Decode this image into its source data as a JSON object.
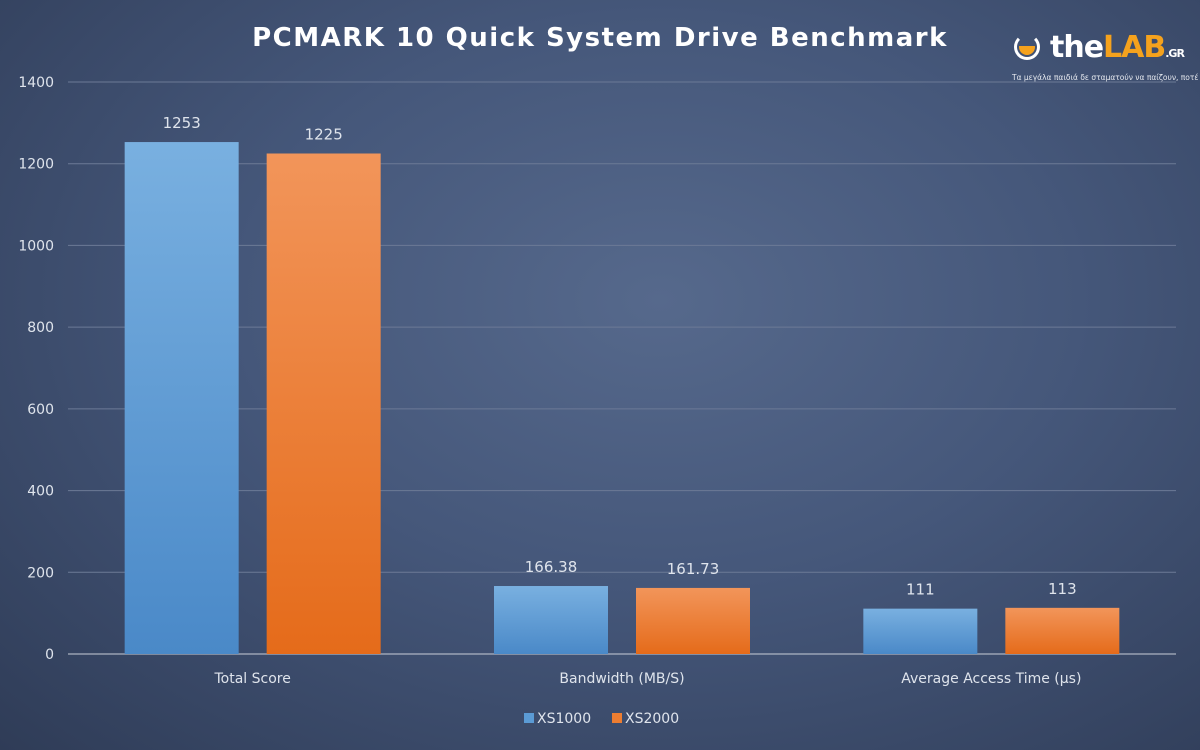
{
  "chart_data": {
    "type": "bar",
    "title": "PCMARK 10 Quick System Drive Benchmark",
    "categories": [
      "Total Score",
      "Bandwidth (MB/S)",
      "Average Access Time (µs)"
    ],
    "series": [
      {
        "name": "XS1000",
        "values": [
          1253,
          166.38,
          111
        ],
        "labels": [
          "1253",
          "166.38",
          "111"
        ],
        "color": "#5b9bd5"
      },
      {
        "name": "XS2000",
        "values": [
          1225,
          161.73,
          113
        ],
        "labels": [
          "1225",
          "161.73",
          "113"
        ],
        "color": "#ed7d31"
      }
    ],
    "ylim": [
      0,
      1400
    ],
    "yticks": [
      0,
      200,
      400,
      600,
      800,
      1000,
      1200,
      1400
    ],
    "grid": true,
    "legend": "bottom",
    "xlabel": "",
    "ylabel": ""
  },
  "logo": {
    "the": "the",
    "lab": "LAB",
    "gr": ".GR",
    "tagline": "Τα μεγάλα παιδιά δε σταματούν να παίζουν, ποτέ"
  }
}
